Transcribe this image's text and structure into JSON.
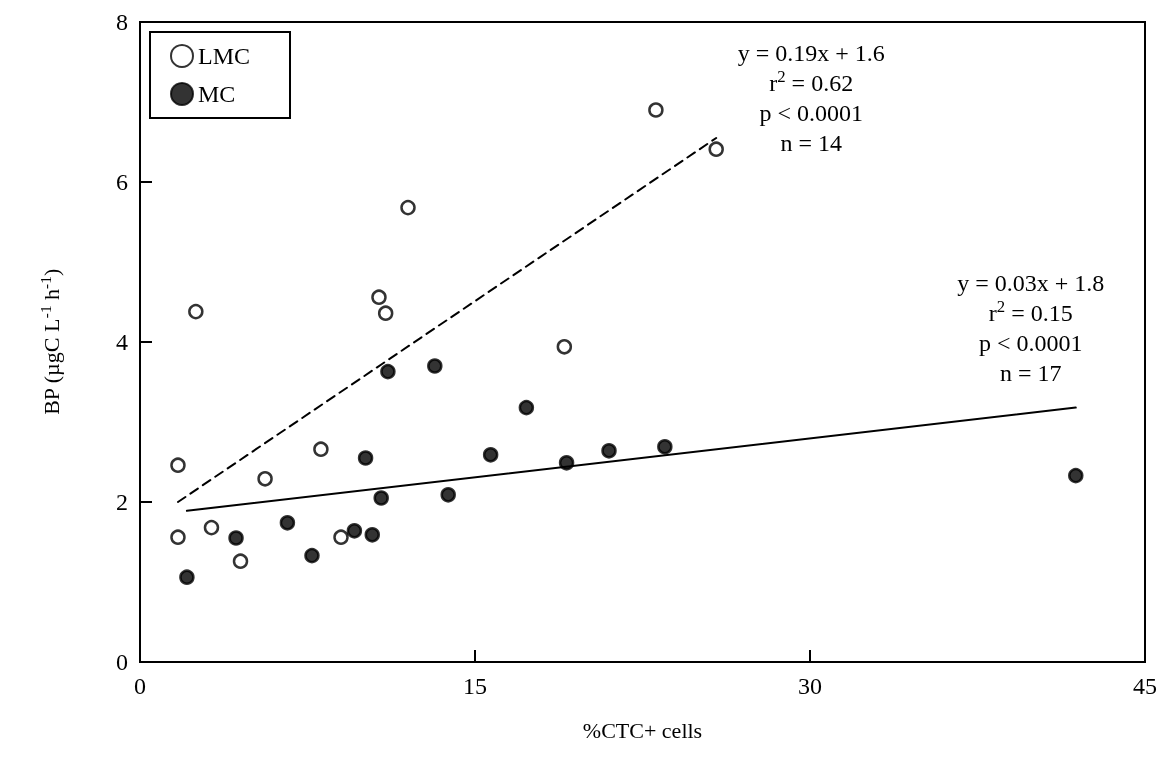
{
  "chart_data": {
    "type": "scatter",
    "xlabel": "%CTC+ cells",
    "ylabel": "BP (µgC L$^{-1}$ h$^{-1}$)",
    "xlim": [
      0,
      45
    ],
    "xticks": [
      0,
      15,
      30,
      45
    ],
    "ylim": [
      0,
      8
    ],
    "yticks": [
      0,
      2,
      4,
      6,
      8
    ],
    "grid": false,
    "legend": "top left",
    "marker": "circle",
    "series": [
      {
        "name": "LMC",
        "color": "#ffffff",
        "x": [
          1.7,
          2.5,
          1.7,
          3.2,
          4.5,
          5.6,
          8.1,
          9.0,
          10.7,
          11.0,
          12.0,
          19.0,
          23.1,
          25.8
        ],
        "values": [
          2.46,
          4.38,
          1.56,
          1.68,
          1.26,
          2.29,
          2.66,
          1.56,
          4.56,
          4.36,
          5.68,
          3.94,
          6.9,
          6.41
        ]
      },
      {
        "name": "MC",
        "color": "#000000",
        "x": [
          2.1,
          4.3,
          6.6,
          7.7,
          9.6,
          10.1,
          10.4,
          10.8,
          11.1,
          13.2,
          13.8,
          15.7,
          17.3,
          19.1,
          21.0,
          23.5,
          41.9
        ],
        "values": [
          1.06,
          1.55,
          1.74,
          1.33,
          1.64,
          2.55,
          1.59,
          2.05,
          3.63,
          3.7,
          2.09,
          2.59,
          3.18,
          2.49,
          2.64,
          2.69,
          2.33
        ]
      },
      {
        "type": "line",
        "color": "#000000",
        "line_style": "dashed",
        "marker": "none",
        "x": [
          1.7,
          25.8
        ],
        "values": [
          2.0,
          6.55
        ]
      },
      {
        "type": "line",
        "color": "#000000",
        "line_style": "solid",
        "marker": "none",
        "x": [
          2.1,
          41.9
        ],
        "values": [
          1.89,
          3.18
        ]
      }
    ],
    "annotations": [
      "y = 0.19x + 1.6\nr$^{2}$ = 0.62\np < 0.0001\nn = 14",
      "y = 0.03x + 1.8\nr$^{2}$ = 0.15\np < 0.0001\nn = 17"
    ]
  }
}
